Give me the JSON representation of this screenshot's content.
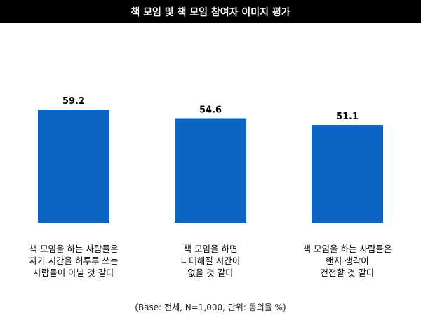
{
  "chart_data": {
    "type": "bar",
    "title": "책 모임 및 책 모임 참여자 이미지 평가",
    "categories": [
      "책 모임을 하는 사람들은\n자기 시간을 허투루 쓰는\n사람들이 아닐 것 같다",
      "책 모임을 하면\n나태해질 시간이\n없을 것 같다",
      "책 모임을 하는 사람들은\n왠지 생각이\n건전할 것 같다"
    ],
    "values": [
      59.2,
      54.6,
      51.1
    ],
    "value_labels": [
      "59.2",
      "54.6",
      "51.1"
    ],
    "ylim": [
      0,
      100
    ],
    "bar_color": "#0a66c2",
    "grid": false,
    "footnote": "(Base: 전체, N=1,000, 단위: 동의율 %)"
  }
}
